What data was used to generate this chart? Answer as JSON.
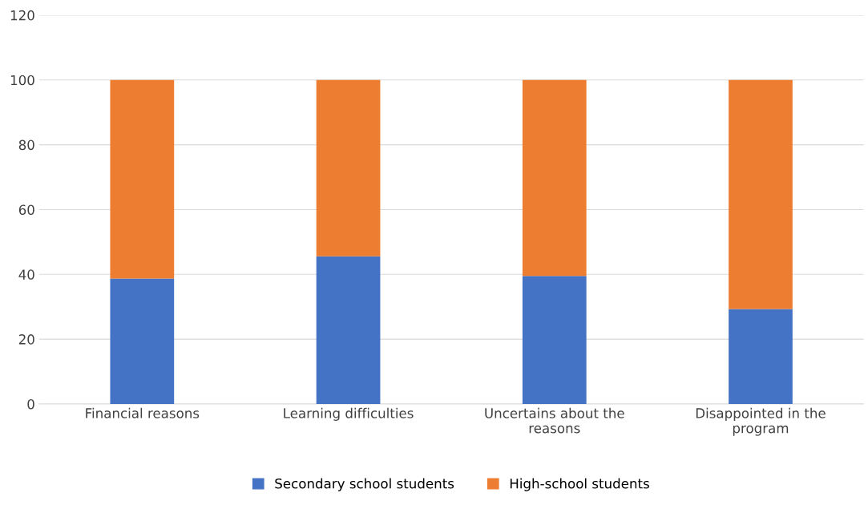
{
  "chart_data": {
    "type": "bar",
    "stacked": true,
    "categories": [
      "Financial reasons",
      "Learning difficulties",
      "Uncertains about the\nreasons",
      "Disappointed in the\nprogram"
    ],
    "series": [
      {
        "name": "Secondary school students",
        "color": "#4472c4",
        "values": [
          38.7,
          45.6,
          39.5,
          29.3
        ]
      },
      {
        "name": "High-school students",
        "color": "#ed7d31",
        "values": [
          61.3,
          54.4,
          60.5,
          70.7
        ]
      }
    ],
    "ylim": [
      0,
      120
    ],
    "yticks": [
      0,
      20,
      40,
      60,
      80,
      100,
      120
    ],
    "grid": "y",
    "legend": "bottom"
  }
}
